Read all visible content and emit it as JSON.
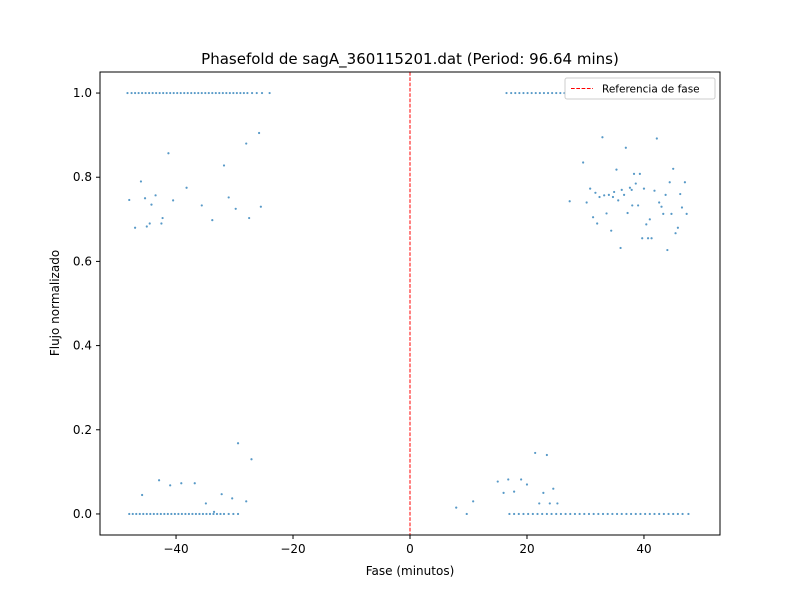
{
  "chart_data": {
    "type": "scatter",
    "title": "Phasefold de sagA_360115201.dat (Period: 96.64 mins)",
    "xlabel": "Fase (minutos)",
    "ylabel": "Flujo normalizado",
    "xlim": [
      -53,
      53
    ],
    "ylim": [
      -0.05,
      1.05
    ],
    "xticks": [
      -40,
      -20,
      0,
      20,
      40
    ],
    "yticks": [
      0.0,
      0.2,
      0.4,
      0.6,
      0.8,
      1.0
    ],
    "xtick_labels": [
      "−40",
      "−20",
      "0",
      "20",
      "40"
    ],
    "ytick_labels": [
      "0.0",
      "0.2",
      "0.4",
      "0.6",
      "0.8",
      "1.0"
    ],
    "grid": false,
    "legend": {
      "location": "top-right",
      "entries": [
        "Referencia de fase"
      ]
    },
    "reference_line": {
      "x": 0,
      "label": "Referencia de fase",
      "color": "#ff0000",
      "style": "dashed"
    },
    "point_color": "#1f77b4",
    "series": [
      {
        "name": "Flujo",
        "points": [
          [
            -48.3,
            1.0
          ],
          [
            -47.6,
            1.0
          ],
          [
            -47.0,
            1.0
          ],
          [
            -46.4,
            1.0
          ],
          [
            -45.8,
            1.0
          ],
          [
            -45.2,
            1.0
          ],
          [
            -44.6,
            1.0
          ],
          [
            -44.0,
            1.0
          ],
          [
            -43.4,
            1.0
          ],
          [
            -42.8,
            1.0
          ],
          [
            -42.2,
            1.0
          ],
          [
            -41.6,
            1.0
          ],
          [
            -41.0,
            1.0
          ],
          [
            -40.4,
            1.0
          ],
          [
            -39.8,
            1.0
          ],
          [
            -39.2,
            1.0
          ],
          [
            -38.6,
            1.0
          ],
          [
            -38.0,
            1.0
          ],
          [
            -37.4,
            1.0
          ],
          [
            -36.8,
            1.0
          ],
          [
            -36.2,
            1.0
          ],
          [
            -35.6,
            1.0
          ],
          [
            -35.0,
            1.0
          ],
          [
            -34.4,
            1.0
          ],
          [
            -33.8,
            1.0
          ],
          [
            -33.2,
            1.0
          ],
          [
            -32.6,
            1.0
          ],
          [
            -32.0,
            1.0
          ],
          [
            -31.4,
            1.0
          ],
          [
            -30.8,
            1.0
          ],
          [
            -30.2,
            1.0
          ],
          [
            -29.6,
            1.0
          ],
          [
            -29.0,
            1.0
          ],
          [
            -28.4,
            1.0
          ],
          [
            -27.8,
            1.0
          ],
          [
            -27.0,
            1.0
          ],
          [
            -26.2,
            1.0
          ],
          [
            -25.3,
            1.0
          ],
          [
            -24.0,
            1.0
          ],
          [
            16.5,
            1.0
          ],
          [
            17.3,
            1.0
          ],
          [
            18.0,
            1.0
          ],
          [
            18.7,
            1.0
          ],
          [
            19.4,
            1.0
          ],
          [
            20.1,
            1.0
          ],
          [
            20.8,
            1.0
          ],
          [
            21.5,
            1.0
          ],
          [
            22.2,
            1.0
          ],
          [
            22.9,
            1.0
          ],
          [
            23.6,
            1.0
          ],
          [
            24.3,
            1.0
          ],
          [
            25.0,
            1.0
          ],
          [
            25.7,
            1.0
          ],
          [
            26.4,
            1.0
          ],
          [
            27.1,
            1.0
          ],
          [
            27.8,
            1.0
          ],
          [
            28.5,
            1.0
          ],
          [
            29.2,
            1.0
          ],
          [
            29.9,
            1.0
          ],
          [
            30.6,
            1.0
          ],
          [
            31.3,
            1.0
          ],
          [
            -48.0,
            0.746
          ],
          [
            -47.0,
            0.68
          ],
          [
            -46.0,
            0.79
          ],
          [
            -45.3,
            0.75
          ],
          [
            -45.0,
            0.683
          ],
          [
            -44.5,
            0.69
          ],
          [
            -44.2,
            0.735
          ],
          [
            -43.5,
            0.757
          ],
          [
            -42.5,
            0.69
          ],
          [
            -42.3,
            0.703
          ],
          [
            -41.3,
            0.857
          ],
          [
            -40.5,
            0.745
          ],
          [
            -38.2,
            0.775
          ],
          [
            -35.6,
            0.733
          ],
          [
            -33.8,
            0.698
          ],
          [
            -31.8,
            0.828
          ],
          [
            -31.0,
            0.752
          ],
          [
            -29.8,
            0.725
          ],
          [
            -28.0,
            0.88
          ],
          [
            -27.5,
            0.703
          ],
          [
            -25.8,
            0.905
          ],
          [
            -25.5,
            0.73
          ],
          [
            27.3,
            0.743
          ],
          [
            29.6,
            0.835
          ],
          [
            30.8,
            0.773
          ],
          [
            31.3,
            0.705
          ],
          [
            31.7,
            0.763
          ],
          [
            32.0,
            0.69
          ],
          [
            32.4,
            0.753
          ],
          [
            32.9,
            0.895
          ],
          [
            33.2,
            0.757
          ],
          [
            33.6,
            0.714
          ],
          [
            34.0,
            0.758
          ],
          [
            34.4,
            0.673
          ],
          [
            34.9,
            0.765
          ],
          [
            35.3,
            0.818
          ],
          [
            35.6,
            0.745
          ],
          [
            36.0,
            0.632
          ],
          [
            36.2,
            0.77
          ],
          [
            36.6,
            0.758
          ],
          [
            36.9,
            0.87
          ],
          [
            37.2,
            0.715
          ],
          [
            37.6,
            0.775
          ],
          [
            38.0,
            0.733
          ],
          [
            38.3,
            0.808
          ],
          [
            38.6,
            0.785
          ],
          [
            39.0,
            0.733
          ],
          [
            39.3,
            0.808
          ],
          [
            39.7,
            0.655
          ],
          [
            40.0,
            0.773
          ],
          [
            40.4,
            0.688
          ],
          [
            40.7,
            0.655
          ],
          [
            41.0,
            0.7
          ],
          [
            41.3,
            0.655
          ],
          [
            41.8,
            0.768
          ],
          [
            42.2,
            0.892
          ],
          [
            42.6,
            0.74
          ],
          [
            43.0,
            0.73
          ],
          [
            43.3,
            0.713
          ],
          [
            43.7,
            0.758
          ],
          [
            44.0,
            0.627
          ],
          [
            44.4,
            0.788
          ],
          [
            44.7,
            0.713
          ],
          [
            45.0,
            0.82
          ],
          [
            45.4,
            0.667
          ],
          [
            45.8,
            0.68
          ],
          [
            46.2,
            0.76
          ],
          [
            46.5,
            0.728
          ],
          [
            47.0,
            0.788
          ],
          [
            47.3,
            0.713
          ],
          [
            30.2,
            0.74
          ],
          [
            34.7,
            0.753
          ],
          [
            37.9,
            0.77
          ],
          [
            -48.0,
            0.0
          ],
          [
            -47.4,
            0.0
          ],
          [
            -46.8,
            0.0
          ],
          [
            -46.2,
            0.0
          ],
          [
            -45.6,
            0.0
          ],
          [
            -45.0,
            0.0
          ],
          [
            -44.4,
            0.0
          ],
          [
            -43.8,
            0.0
          ],
          [
            -43.2,
            0.0
          ],
          [
            -42.6,
            0.0
          ],
          [
            -42.0,
            0.0
          ],
          [
            -41.4,
            0.0
          ],
          [
            -40.8,
            0.0
          ],
          [
            -40.2,
            0.0
          ],
          [
            -39.6,
            0.0
          ],
          [
            -39.0,
            0.0
          ],
          [
            -38.4,
            0.0
          ],
          [
            -37.8,
            0.0
          ],
          [
            -37.2,
            0.0
          ],
          [
            -36.6,
            0.0
          ],
          [
            -36.0,
            0.0
          ],
          [
            -35.4,
            0.0
          ],
          [
            -34.8,
            0.0
          ],
          [
            -34.2,
            0.0
          ],
          [
            -33.6,
            0.0
          ],
          [
            -33.0,
            0.0
          ],
          [
            -32.4,
            0.0
          ],
          [
            -31.8,
            0.0
          ],
          [
            -31.0,
            0.0
          ],
          [
            -30.2,
            0.0
          ],
          [
            -29.4,
            0.0
          ],
          [
            -45.8,
            0.045
          ],
          [
            -42.9,
            0.08
          ],
          [
            -41.0,
            0.068
          ],
          [
            -39.1,
            0.073
          ],
          [
            -36.8,
            0.073
          ],
          [
            -34.9,
            0.025
          ],
          [
            -32.2,
            0.047
          ],
          [
            -30.4,
            0.037
          ],
          [
            -29.4,
            0.168
          ],
          [
            -28.0,
            0.03
          ],
          [
            -27.1,
            0.13
          ],
          [
            -33.5,
            0.005
          ],
          [
            7.9,
            0.015
          ],
          [
            9.7,
            0.0
          ],
          [
            10.8,
            0.03
          ],
          [
            15.0,
            0.077
          ],
          [
            16.0,
            0.05
          ],
          [
            16.8,
            0.082
          ],
          [
            17.8,
            0.053
          ],
          [
            19.0,
            0.082
          ],
          [
            20.0,
            0.07
          ],
          [
            21.4,
            0.145
          ],
          [
            22.1,
            0.025
          ],
          [
            22.8,
            0.05
          ],
          [
            23.4,
            0.14
          ],
          [
            23.9,
            0.025
          ],
          [
            24.5,
            0.06
          ],
          [
            25.2,
            0.025
          ],
          [
            17.0,
            0.0
          ],
          [
            17.8,
            0.0
          ],
          [
            18.6,
            0.0
          ],
          [
            19.4,
            0.0
          ],
          [
            20.2,
            0.0
          ],
          [
            21.0,
            0.0
          ],
          [
            21.8,
            0.0
          ],
          [
            22.6,
            0.0
          ],
          [
            23.4,
            0.0
          ],
          [
            24.2,
            0.0
          ],
          [
            25.0,
            0.0
          ],
          [
            25.8,
            0.0
          ],
          [
            26.6,
            0.0
          ],
          [
            27.4,
            0.0
          ],
          [
            28.2,
            0.0
          ],
          [
            29.0,
            0.0
          ],
          [
            29.8,
            0.0
          ],
          [
            30.6,
            0.0
          ],
          [
            31.4,
            0.0
          ],
          [
            32.2,
            0.0
          ],
          [
            33.0,
            0.0
          ],
          [
            33.8,
            0.0
          ],
          [
            34.6,
            0.0
          ],
          [
            35.4,
            0.0
          ],
          [
            36.2,
            0.0
          ],
          [
            37.0,
            0.0
          ],
          [
            37.8,
            0.0
          ],
          [
            38.6,
            0.0
          ],
          [
            39.4,
            0.0
          ],
          [
            40.2,
            0.0
          ],
          [
            41.0,
            0.0
          ],
          [
            41.8,
            0.0
          ],
          [
            42.6,
            0.0
          ],
          [
            43.4,
            0.0
          ],
          [
            44.2,
            0.0
          ],
          [
            45.0,
            0.0
          ],
          [
            45.8,
            0.0
          ],
          [
            46.6,
            0.0
          ],
          [
            47.6,
            0.0
          ]
        ]
      }
    ]
  }
}
